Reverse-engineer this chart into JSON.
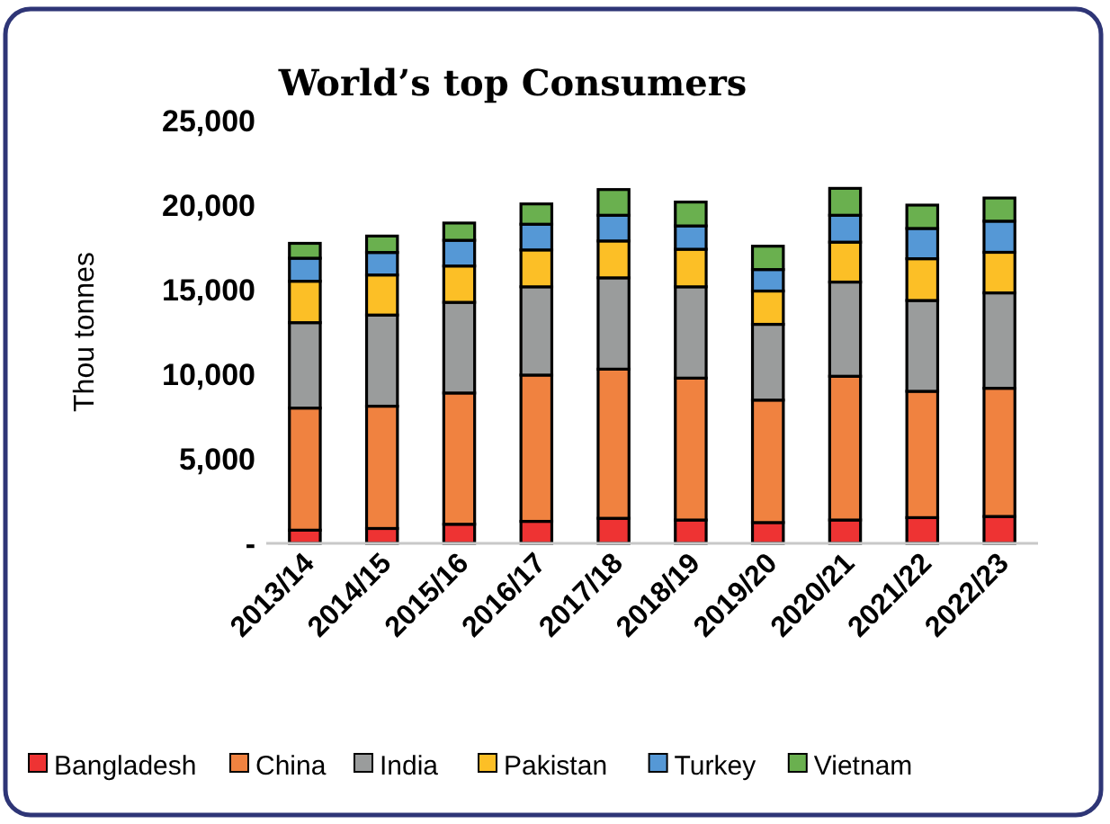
{
  "chart_data": {
    "type": "bar",
    "stacked": true,
    "title": "World’s top Consumers",
    "ylabel": "Thou tonnes",
    "categories": [
      "2013/14",
      "2014/15",
      "2015/16",
      "2016/17",
      "2017/18",
      "2018/19",
      "2019/20",
      "2020/21",
      "2021/22",
      "2022/23"
    ],
    "series": [
      {
        "name": "Bangladesh",
        "color": "#ee3333",
        "values": [
          780,
          880,
          1130,
          1300,
          1480,
          1380,
          1230,
          1380,
          1520,
          1590
        ]
      },
      {
        "name": "China",
        "color": "#f08240",
        "values": [
          7220,
          7230,
          7760,
          8650,
          8820,
          8390,
          7240,
          8500,
          7470,
          7580
        ]
      },
      {
        "name": "India",
        "color": "#9a9c9c",
        "values": [
          5050,
          5390,
          5360,
          5220,
          5400,
          5400,
          4480,
          5570,
          5370,
          5640
        ]
      },
      {
        "name": "Pakistan",
        "color": "#fcbf26",
        "values": [
          2450,
          2370,
          2150,
          2180,
          2180,
          2220,
          1970,
          2360,
          2470,
          2400
        ]
      },
      {
        "name": "Turkey",
        "color": "#5598d6",
        "values": [
          1360,
          1330,
          1520,
          1520,
          1520,
          1380,
          1270,
          1590,
          1790,
          1840
        ]
      },
      {
        "name": "Vietnam",
        "color": "#6ab04f",
        "values": [
          880,
          970,
          1020,
          1200,
          1520,
          1410,
          1380,
          1590,
          1380,
          1370
        ]
      }
    ],
    "ylim": [
      0,
      25000
    ],
    "yticks": [
      {
        "value": 0,
        "label": "-"
      },
      {
        "value": 5000,
        "label": "5,000"
      },
      {
        "value": 10000,
        "label": "10,000"
      },
      {
        "value": 15000,
        "label": "15,000"
      },
      {
        "value": 20000,
        "label": "20,000"
      },
      {
        "value": 25000,
        "label": "25,000"
      }
    ],
    "grid": false,
    "legend": "bottom"
  }
}
